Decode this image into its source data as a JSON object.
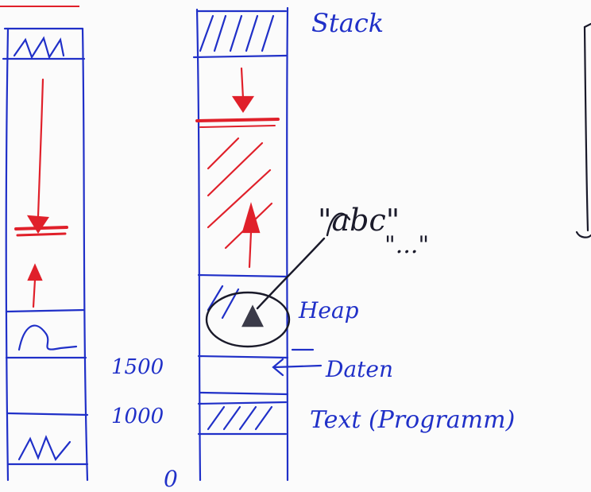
{
  "diagram": {
    "labels": {
      "stack": "Stack",
      "heap": "Heap",
      "daten": "Daten",
      "text": "Text (Programm)",
      "addr_1500": "1500",
      "addr_1000": "1000",
      "addr_0": "0",
      "string_abc": "\"abc\"",
      "string_dots": "\"...\""
    },
    "colors": {
      "ink_blue": "#2030c8",
      "ink_red": "#e0202a",
      "ink_dark": "#1a1a2a",
      "paper": "#fbfbfb"
    }
  }
}
